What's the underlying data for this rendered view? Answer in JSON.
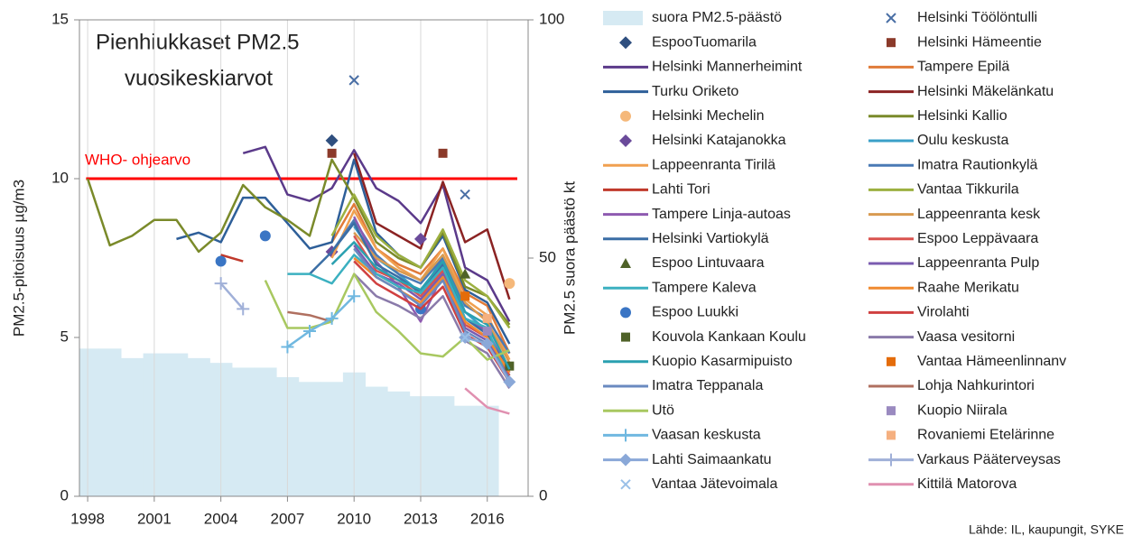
{
  "chart_data": {
    "type": "line",
    "title": "Pienhiukkaset PM2.5",
    "subtitle": "vuosikeskiarvot",
    "y_label": "PM2.5-pitoisuus µg/m3",
    "y2_label": "PM2.5 suora päästö  kt",
    "source": "Lähde: IL, kaupungit, SYKE",
    "reference": {
      "label": "WHO- ohjearvo",
      "value": 10,
      "color": "#ff0000"
    },
    "xlim": [
      1997.63,
      2017.84
    ],
    "xticks": [
      1998,
      2001,
      2004,
      2007,
      2010,
      2013,
      2016
    ],
    "ylim": [
      0,
      15
    ],
    "yticks": [
      0,
      5,
      10,
      15
    ],
    "y2lim": [
      0,
      100
    ],
    "y2ticks": [
      0,
      50,
      100
    ],
    "grid": true,
    "legend": "right",
    "series": [
      {
        "name": "suora PM2.5-päästö",
        "color": "#d6eaf3",
        "style": "area",
        "axis": "y2",
        "x": [
          1998,
          1999,
          2000,
          2001,
          2002,
          2003,
          2004,
          2005,
          2006,
          2007,
          2008,
          2009,
          2010,
          2011,
          2012,
          2013,
          2014,
          2015,
          2016
        ],
        "values": [
          31,
          31,
          29,
          30,
          30,
          29,
          28,
          27,
          27,
          25,
          24,
          24,
          26,
          23,
          22,
          21,
          21,
          19,
          19
        ]
      },
      {
        "name": "Helsinki Töölöntulli",
        "color": "#4a6fa5",
        "style": "marker",
        "marker": "x",
        "x": [
          2010,
          2015
        ],
        "values": [
          13.1,
          9.5
        ]
      },
      {
        "name": "EspooTuomarila",
        "color": "#2f4f7f",
        "style": "marker",
        "marker": "diamond",
        "x": [
          2009
        ],
        "values": [
          11.2
        ]
      },
      {
        "name": "Helsinki Hämeentie",
        "color": "#8b3a2a",
        "style": "marker",
        "marker": "square",
        "x": [
          2009,
          2014
        ],
        "values": [
          10.8,
          10.8
        ]
      },
      {
        "name": "Helsinki Mannerheimint",
        "color": "#5b3a8a",
        "style": "line",
        "x": [
          2005,
          2006,
          2007,
          2008,
          2009,
          2010,
          2011,
          2012,
          2013,
          2014,
          2015,
          2016,
          2017
        ],
        "values": [
          10.8,
          11.0,
          9.5,
          9.3,
          9.7,
          10.9,
          9.7,
          9.3,
          8.6,
          9.8,
          7.2,
          6.8,
          5.5
        ]
      },
      {
        "name": "Tampere Epilä",
        "color": "#e07b39",
        "style": "line",
        "x": [
          2009,
          2010,
          2011,
          2012,
          2013,
          2014,
          2015,
          2016,
          2017
        ],
        "values": [
          8.0,
          9.2,
          7.8,
          7.3,
          7.0,
          7.8,
          6.4,
          6.0,
          4.5
        ]
      },
      {
        "name": "Turku Oriketo",
        "color": "#2e5f99",
        "style": "line",
        "x": [
          2002,
          2003,
          2004,
          2005,
          2006,
          2007,
          2008,
          2009,
          2010,
          2011,
          2012,
          2013,
          2014,
          2015,
          2016,
          2017
        ],
        "values": [
          8.1,
          8.3,
          8.0,
          9.4,
          9.4,
          8.6,
          7.8,
          8.0,
          10.6,
          8.3,
          7.6,
          7.2,
          8.2,
          6.5,
          6.1,
          4.8
        ]
      },
      {
        "name": "Helsinki Mäkelänkatu",
        "color": "#8b2323",
        "style": "line",
        "x": [
          2010,
          2011,
          2012,
          2013,
          2014,
          2015,
          2016,
          2017
        ],
        "values": [
          10.8,
          8.6,
          8.2,
          7.8,
          9.9,
          8.0,
          8.4,
          6.2
        ]
      },
      {
        "name": "Helsinki Mechelin",
        "color": "#f5b87a",
        "style": "marker",
        "marker": "circle",
        "x": [
          2017
        ],
        "values": [
          6.7
        ]
      },
      {
        "name": "Helsinki Kallio",
        "color": "#7a8a2a",
        "style": "line",
        "x": [
          1998,
          1999,
          2000,
          2001,
          2002,
          2003,
          2004,
          2005,
          2006,
          2007,
          2008,
          2009,
          2010,
          2011,
          2012,
          2013,
          2014,
          2015,
          2016,
          2017
        ],
        "values": [
          10.0,
          7.9,
          8.2,
          8.7,
          8.7,
          7.7,
          8.3,
          9.8,
          9.1,
          8.7,
          8.2,
          10.6,
          9.4,
          8.0,
          7.5,
          7.2,
          8.3,
          6.6,
          6.3,
          5.4
        ]
      },
      {
        "name": "Helsinki Katajanokka",
        "color": "#6a4a9a",
        "style": "marker",
        "marker": "diamond",
        "x": [
          2009,
          2013
        ],
        "values": [
          7.7,
          8.1
        ]
      },
      {
        "name": "Oulu keskusta",
        "color": "#3aa0c8",
        "style": "line",
        "x": [
          2010,
          2011,
          2012,
          2013,
          2014,
          2015,
          2016,
          2017
        ],
        "values": [
          8.5,
          7.5,
          7.0,
          6.4,
          7.5,
          5.8,
          5.2,
          3.8
        ]
      },
      {
        "name": "Lappeenranta Tirilä",
        "color": "#f0a050",
        "style": "line",
        "x": [
          2009,
          2010,
          2011,
          2012,
          2013,
          2014,
          2015,
          2016,
          2017
        ],
        "values": [
          7.5,
          9.0,
          7.8,
          7.2,
          6.8,
          7.8,
          6.2,
          5.7,
          4.3
        ]
      },
      {
        "name": "Imatra Rautionkylä",
        "color": "#4a7ab5",
        "style": "line",
        "x": [
          2009,
          2010,
          2011,
          2012,
          2013,
          2014,
          2015,
          2016,
          2017
        ],
        "values": [
          7.7,
          8.7,
          7.6,
          7.0,
          6.7,
          7.5,
          6.0,
          5.6,
          4.5
        ]
      },
      {
        "name": "Lahti Tori",
        "color": "#c0392b",
        "style": "line",
        "x": [
          2004,
          2005
        ],
        "values": [
          7.6,
          7.4
        ]
      },
      {
        "name": "Vantaa Tikkurila",
        "color": "#9cb040",
        "style": "line",
        "x": [
          2009,
          2010,
          2011,
          2012,
          2013,
          2014,
          2015,
          2016,
          2017
        ],
        "values": [
          8.2,
          9.5,
          8.2,
          7.6,
          7.2,
          8.4,
          6.8,
          6.3,
          5.3
        ]
      },
      {
        "name": "Tampere Linja-autoas",
        "color": "#8e5ab0",
        "style": "line",
        "x": [
          2010,
          2011,
          2012,
          2013,
          2014,
          2015,
          2016,
          2017
        ],
        "values": [
          8.8,
          7.4,
          6.6,
          5.5,
          7.0,
          5.6,
          5.2,
          3.9
        ]
      },
      {
        "name": "Lappeenranta kesk",
        "color": "#d89a50",
        "style": "line",
        "x": [
          2010,
          2011,
          2012,
          2013,
          2014,
          2015,
          2016,
          2017
        ],
        "values": [
          8.3,
          7.5,
          7.1,
          6.8,
          7.6,
          6.1,
          5.5,
          4.2
        ]
      },
      {
        "name": "Helsinki Vartiokylä",
        "color": "#3b6ea5",
        "style": "line",
        "x": [
          2008,
          2009,
          2010,
          2011,
          2012,
          2013,
          2014,
          2015,
          2016,
          2017
        ],
        "values": [
          7.0,
          7.7,
          8.6,
          7.3,
          6.9,
          6.4,
          7.3,
          5.6,
          5.1,
          3.9
        ]
      },
      {
        "name": "Espoo Leppävaara",
        "color": "#d9534f",
        "style": "line",
        "x": [
          2010,
          2011,
          2012,
          2013,
          2014,
          2015,
          2016,
          2017
        ],
        "values": [
          8.2,
          7.1,
          6.8,
          6.3,
          7.1,
          5.4,
          5.0,
          3.8
        ]
      },
      {
        "name": "Espoo Lintuvaara",
        "color": "#4f6228",
        "style": "marker",
        "marker": "triangle",
        "x": [
          2015
        ],
        "values": [
          7.0
        ]
      },
      {
        "name": "Lappeenranta Pulp",
        "color": "#7b5cb0",
        "style": "line",
        "x": [
          2010,
          2011,
          2012,
          2013,
          2014,
          2015,
          2016,
          2017
        ],
        "values": [
          7.9,
          7.0,
          6.7,
          6.2,
          7.0,
          5.3,
          4.9,
          3.7
        ]
      },
      {
        "name": "Tampere Kaleva",
        "color": "#3bb0c0",
        "style": "line",
        "x": [
          2007,
          2008,
          2009,
          2010,
          2011,
          2012,
          2013,
          2014,
          2015,
          2016,
          2017
        ],
        "values": [
          7.0,
          7.0,
          6.7,
          7.6,
          7.0,
          6.6,
          6.4,
          7.2,
          5.6,
          5.3,
          3.5
        ]
      },
      {
        "name": "Raahe Merikatu",
        "color": "#f08a30",
        "style": "line",
        "x": [
          2010,
          2011,
          2012,
          2013,
          2014,
          2015,
          2016,
          2017
        ],
        "values": [
          7.5,
          6.9,
          6.5,
          6.1,
          6.9,
          5.5,
          5.0,
          3.9
        ]
      },
      {
        "name": "Espoo Luukki",
        "color": "#3a75c4",
        "style": "marker",
        "marker": "circle",
        "x": [
          2004,
          2006,
          2013
        ],
        "values": [
          7.4,
          8.2,
          5.9
        ]
      },
      {
        "name": "Virolahti",
        "color": "#d04040",
        "style": "line",
        "x": [
          2010,
          2011,
          2012,
          2013,
          2014,
          2015,
          2016,
          2017
        ],
        "values": [
          7.4,
          6.7,
          6.3,
          5.9,
          6.6,
          5.1,
          4.7,
          3.6
        ]
      },
      {
        "name": "Kouvola Kankaan Koulu",
        "color": "#4f6228",
        "style": "marker",
        "marker": "square",
        "x": [
          2017
        ],
        "values": [
          4.1
        ]
      },
      {
        "name": "Vaasa vesitorni",
        "color": "#8a7aaa",
        "style": "line",
        "x": [
          2010,
          2011,
          2012,
          2013,
          2014,
          2015,
          2016,
          2017
        ],
        "values": [
          7.0,
          6.3,
          6.0,
          5.6,
          6.3,
          4.9,
          4.5,
          3.4
        ]
      },
      {
        "name": "Kuopio Kasarmipuisto",
        "color": "#2aa0b0",
        "style": "line",
        "x": [
          2009,
          2010,
          2011,
          2012,
          2013,
          2014,
          2015,
          2016,
          2017
        ],
        "values": [
          7.3,
          8.0,
          7.2,
          6.8,
          6.5,
          7.4,
          5.8,
          5.4,
          4.0
        ]
      },
      {
        "name": "Vantaa Hämeenlinnanv",
        "color": "#e46c0a",
        "style": "marker",
        "marker": "square",
        "x": [
          2015
        ],
        "values": [
          6.3
        ]
      },
      {
        "name": "Imatra Teppanala",
        "color": "#6a8ac0",
        "style": "line",
        "x": [
          2010,
          2011,
          2012,
          2013,
          2014,
          2015,
          2016,
          2017
        ],
        "values": [
          7.8,
          6.9,
          6.5,
          6.0,
          6.8,
          5.2,
          4.8,
          3.7
        ]
      },
      {
        "name": "Lohja Nahkurintori",
        "color": "#b07060",
        "style": "line",
        "x": [
          2007,
          2008,
          2009
        ],
        "values": [
          5.8,
          5.7,
          5.5
        ]
      },
      {
        "name": "Utö",
        "color": "#a8c860",
        "style": "line",
        "x": [
          2006,
          2007,
          2008,
          2009,
          2010,
          2011,
          2012,
          2013,
          2014,
          2015,
          2016,
          2017
        ],
        "values": [
          6.8,
          5.3,
          5.3,
          5.5,
          7.0,
          5.8,
          5.2,
          4.5,
          4.4,
          5.0,
          4.3,
          4.6
        ]
      },
      {
        "name": "Kuopio Niirala",
        "color": "#9a8ac0",
        "style": "marker",
        "marker": "square",
        "x": [
          2016
        ],
        "values": [
          5.2
        ]
      },
      {
        "name": "Vaasan keskusta",
        "color": "#70b8e0",
        "style": "line",
        "marker": "plus",
        "x": [
          2007,
          2008,
          2009,
          2010
        ],
        "values": [
          4.7,
          5.2,
          5.6,
          6.3
        ]
      },
      {
        "name": "Rovaniemi Etelärinne",
        "color": "#f5b080",
        "style": "marker",
        "marker": "square",
        "x": [
          2016
        ],
        "values": [
          5.6
        ]
      },
      {
        "name": "Lahti Saimaankatu",
        "color": "#8aa8d8",
        "style": "line",
        "marker": "diamond",
        "x": [
          2015,
          2016,
          2017
        ],
        "values": [
          5.0,
          4.8,
          3.6
        ]
      },
      {
        "name": "Varkaus Pääterveysas",
        "color": "#a0b0d8",
        "style": "line",
        "marker": "plus",
        "x": [
          2004,
          2005
        ],
        "values": [
          6.7,
          5.9
        ]
      },
      {
        "name": "Vantaa Jätevoimala",
        "color": "#9ac0e8",
        "style": "marker",
        "marker": "x",
        "x": [
          2015
        ],
        "values": [
          5.0
        ]
      },
      {
        "name": "Kittilä Matorova",
        "color": "#e090b0",
        "style": "line",
        "x": [
          2015,
          2016,
          2017
        ],
        "values": [
          3.4,
          2.8,
          2.6
        ]
      }
    ]
  }
}
